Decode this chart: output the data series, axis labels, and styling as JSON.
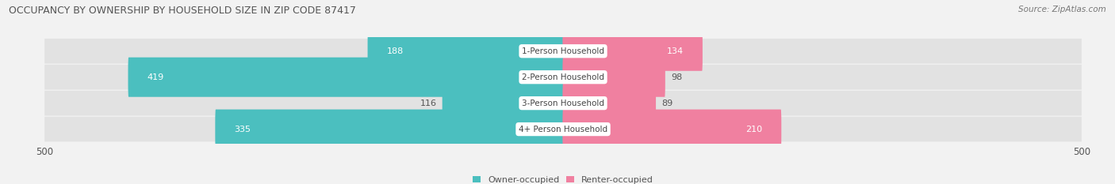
{
  "title": "OCCUPANCY BY OWNERSHIP BY HOUSEHOLD SIZE IN ZIP CODE 87417",
  "source": "Source: ZipAtlas.com",
  "categories": [
    "1-Person Household",
    "2-Person Household",
    "3-Person Household",
    "4+ Person Household"
  ],
  "owner_values": [
    188,
    419,
    116,
    335
  ],
  "renter_values": [
    134,
    98,
    89,
    210
  ],
  "owner_color": "#4BBFBF",
  "renter_color": "#F080A0",
  "axis_max": 500,
  "bg_color": "#f2f2f2",
  "bar_bg_color": "#e2e2e2",
  "legend_owner": "Owner-occupied",
  "legend_renter": "Renter-occupied",
  "title_fontsize": 9,
  "source_fontsize": 7.5,
  "bar_label_fontsize": 8,
  "category_fontsize": 7.5,
  "axis_label_fontsize": 8.5
}
